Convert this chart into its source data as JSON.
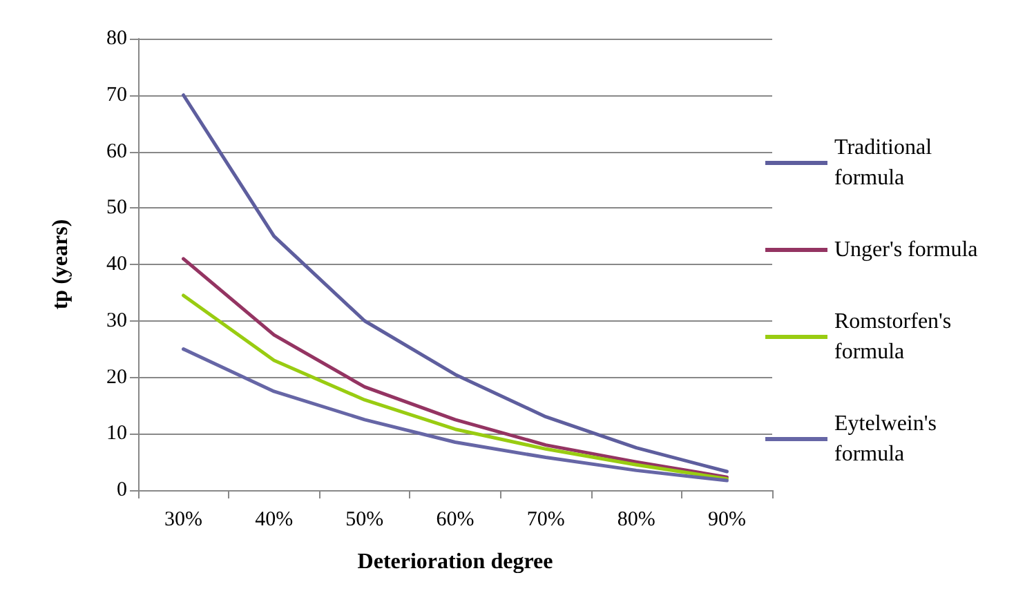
{
  "chart_data": {
    "type": "line",
    "xlabel": "Deterioration degree",
    "ylabel": "tp (years)",
    "categories": [
      "30%",
      "40%",
      "50%",
      "60%",
      "70%",
      "80%",
      "90%"
    ],
    "series": [
      {
        "name": "Traditional formula",
        "color": "#5e5e9e",
        "values": [
          70,
          45,
          30,
          20.5,
          13,
          7.5,
          3.3
        ]
      },
      {
        "name": "Unger's formula",
        "color": "#943462",
        "values": [
          41,
          27.5,
          18.3,
          12.5,
          8,
          5,
          2.3
        ]
      },
      {
        "name": "Romstorfen's formula",
        "color": "#99cc11",
        "values": [
          34.5,
          23,
          16,
          10.8,
          7.3,
          4.5,
          2
        ]
      },
      {
        "name": "Eytelwein's formula",
        "color": "#6666a6",
        "values": [
          25,
          17.5,
          12.5,
          8.5,
          5.8,
          3.5,
          1.7
        ]
      }
    ],
    "ylim": [
      0,
      80
    ],
    "yticks": [
      0,
      10,
      20,
      30,
      40,
      50,
      60,
      70,
      80
    ],
    "grid": "y",
    "legend": "right",
    "marker": "none",
    "line_style": "solid"
  }
}
